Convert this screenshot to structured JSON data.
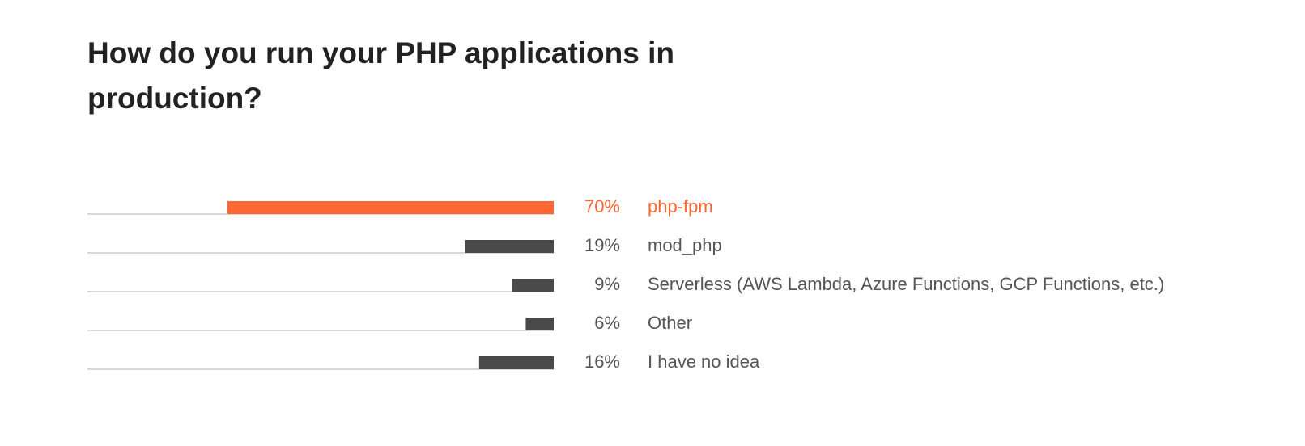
{
  "chart_data": {
    "type": "bar",
    "title": "How do you run your PHP applications in production?",
    "categories": [
      "php-fpm",
      "mod_php",
      "Serverless (AWS Lambda, Azure Functions, GCP Functions, etc.)",
      "Other",
      "I have no idea"
    ],
    "values": [
      70,
      19,
      9,
      6,
      16
    ],
    "value_labels": [
      "70%",
      "19%",
      "9%",
      "6%",
      "16%"
    ],
    "colors": [
      "#ff6633",
      "#4a4a4a",
      "#4a4a4a",
      "#4a4a4a",
      "#4a4a4a"
    ],
    "label_colors": [
      "#ff6633",
      "#555555",
      "#555555",
      "#555555",
      "#555555"
    ],
    "xlim": [
      0,
      100
    ]
  }
}
